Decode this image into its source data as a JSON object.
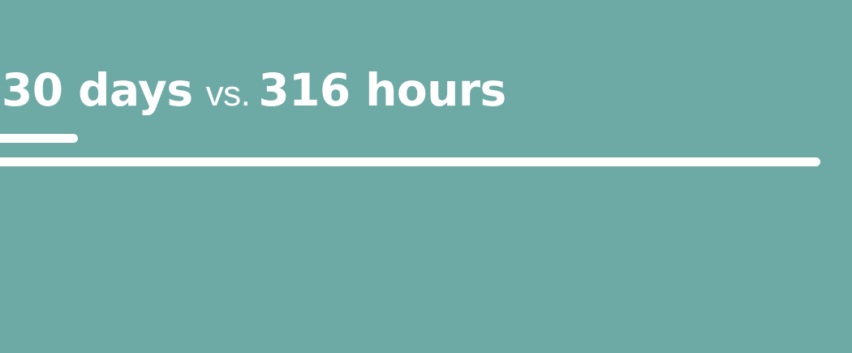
{
  "headline": {
    "left_value": "30 days",
    "connector": "vs.",
    "right_value": "316 hours"
  },
  "comparison": {
    "left_hours": 720,
    "right_hours": 316
  },
  "colors": {
    "background": "#6eaaa5",
    "foreground": "#ffffff"
  }
}
